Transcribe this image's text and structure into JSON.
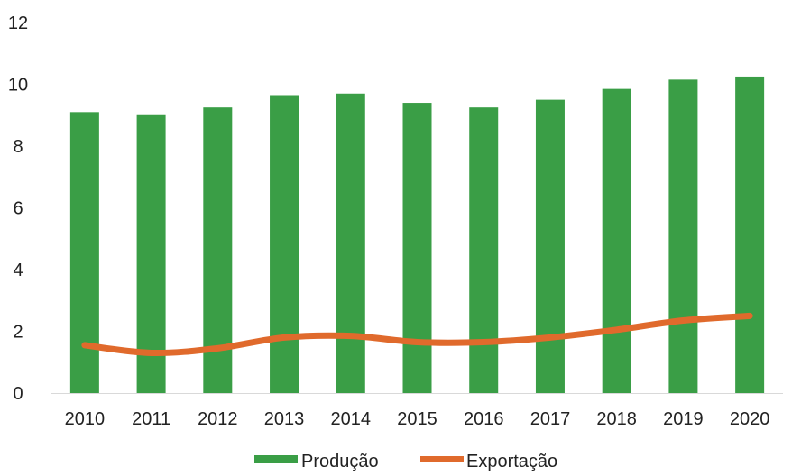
{
  "chart_data": {
    "type": "bar",
    "categories": [
      "2010",
      "2011",
      "2012",
      "2013",
      "2014",
      "2015",
      "2016",
      "2017",
      "2018",
      "2019",
      "2020"
    ],
    "series": [
      {
        "name": "Produção",
        "type": "bar",
        "color": "#3a9e46",
        "values": [
          9.1,
          9.0,
          9.25,
          9.65,
          9.7,
          9.4,
          9.25,
          9.5,
          9.85,
          10.15,
          10.25
        ]
      },
      {
        "name": "Exportação",
        "type": "line",
        "color": "#e06a2c",
        "values": [
          1.55,
          1.3,
          1.45,
          1.8,
          1.85,
          1.65,
          1.65,
          1.8,
          2.05,
          2.35,
          2.5
        ]
      }
    ],
    "ylim": [
      0,
      12
    ],
    "yticks": [
      0,
      2,
      4,
      6,
      8,
      10,
      12
    ],
    "grid": false,
    "legend_position": "bottom"
  }
}
